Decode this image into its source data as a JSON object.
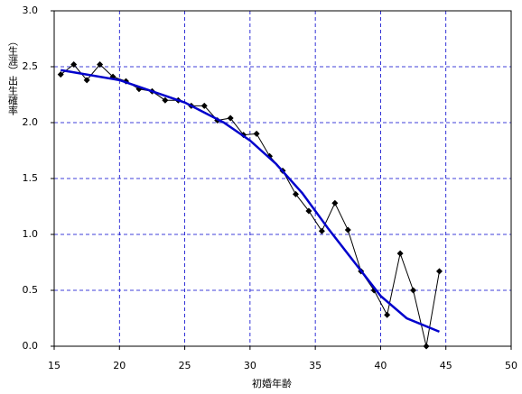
{
  "chart_data": {
    "type": "line",
    "xlabel": "初婚年齢",
    "ylabel": "（生涯）出生確率",
    "xlim": [
      15,
      50
    ],
    "xticks": [
      15,
      20,
      25,
      30,
      35,
      40,
      45,
      50
    ],
    "ylim": [
      0,
      3
    ],
    "yticks": [
      {
        "value": 0,
        "label": "0.0"
      },
      0.5,
      {
        "value": 1,
        "label": "1.0"
      },
      1.5,
      {
        "value": 2,
        "label": "2.0"
      },
      2.5,
      {
        "value": 3,
        "label": "3.0"
      }
    ],
    "grid": true,
    "series": [
      {
        "color": "#000000",
        "marker": "diamond",
        "x": [
          15.5,
          16.5,
          17.5,
          18.5,
          19.5,
          20.5,
          21.5,
          22.5,
          23.5,
          24.5,
          25.5,
          26.5,
          27.5,
          28.5,
          29.5,
          30.5,
          31.5,
          32.5,
          33.5,
          34.5,
          35.5,
          36.5,
          37.5,
          38.5,
          39.5,
          40.5,
          41.5,
          42.5,
          43.5,
          44.5
        ],
        "values": [
          2.43,
          2.52,
          2.38,
          2.52,
          2.41,
          2.37,
          2.3,
          2.28,
          2.2,
          2.2,
          2.15,
          2.15,
          2.02,
          2.04,
          1.89,
          1.9,
          1.7,
          1.57,
          1.36,
          1.21,
          1.03,
          1.28,
          1.04,
          0.67,
          0.5,
          0.28,
          0.83,
          0.5,
          0,
          0.67
        ]
      },
      {
        "color": "#0000cc",
        "x": [
          15.5,
          20,
          25,
          28,
          30,
          32,
          34,
          36,
          38,
          40,
          42,
          44.5
        ],
        "values": [
          2.47,
          2.38,
          2.18,
          2,
          1.84,
          1.63,
          1.37,
          1.05,
          0.75,
          0.45,
          0.25,
          0.13
        ]
      }
    ]
  }
}
